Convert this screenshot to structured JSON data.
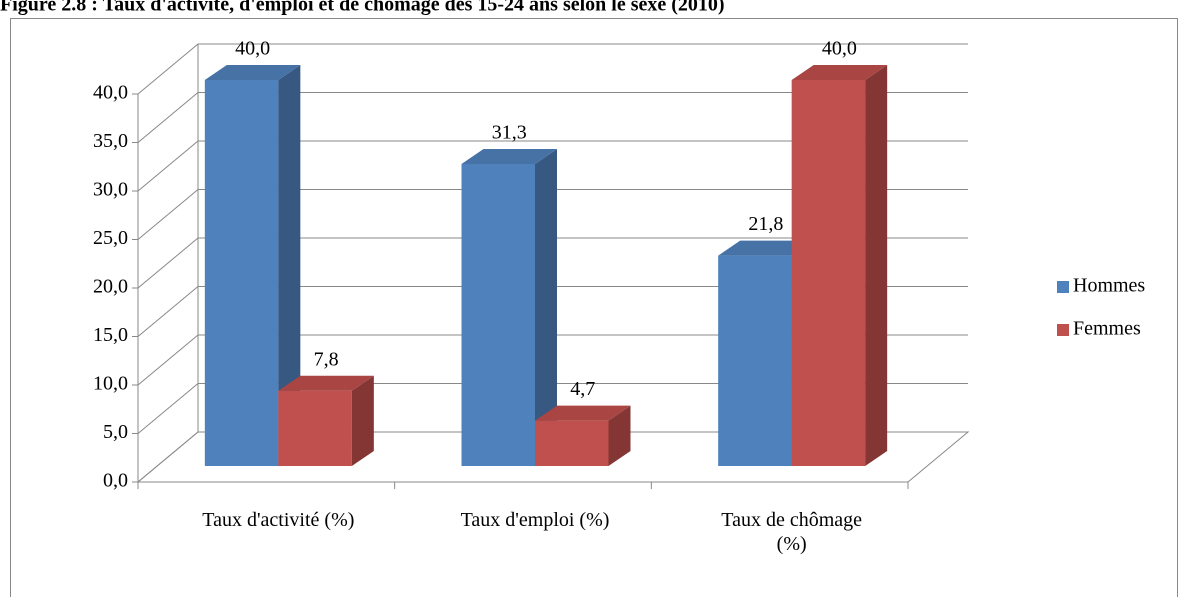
{
  "chart_data": {
    "type": "bar3d",
    "title": "Figure 2.8 : Taux d'activité, d'emploi et de chômage des 15-24 ans selon le sexe (2010)",
    "categories": [
      "Taux d'activité (%)",
      "Taux d'emploi (%)",
      "Taux de chômage (%)"
    ],
    "series": [
      {
        "name": "Hommes",
        "color": "#4f81bd",
        "values": [
          40.0,
          31.3,
          21.8
        ],
        "value_labels": [
          "40,0",
          "31,3",
          "21,8"
        ]
      },
      {
        "name": "Femmes",
        "color": "#c0504d",
        "values": [
          7.8,
          4.7,
          40.0
        ],
        "value_labels": [
          "7,8",
          "4,7",
          "40,0"
        ]
      }
    ],
    "ylim": [
      0,
      40
    ],
    "yticks": [
      {
        "value": 0,
        "label": "0,0"
      },
      {
        "value": 5,
        "label": "5,0"
      },
      {
        "value": 10,
        "label": "10,0"
      },
      {
        "value": 15,
        "label": "15,0"
      },
      {
        "value": 20,
        "label": "20,0"
      },
      {
        "value": 25,
        "label": "25,0"
      },
      {
        "value": 30,
        "label": "30,0"
      },
      {
        "value": 35,
        "label": "35,0"
      },
      {
        "value": 40,
        "label": "40,0"
      }
    ],
    "grid": true,
    "legend": "right"
  }
}
